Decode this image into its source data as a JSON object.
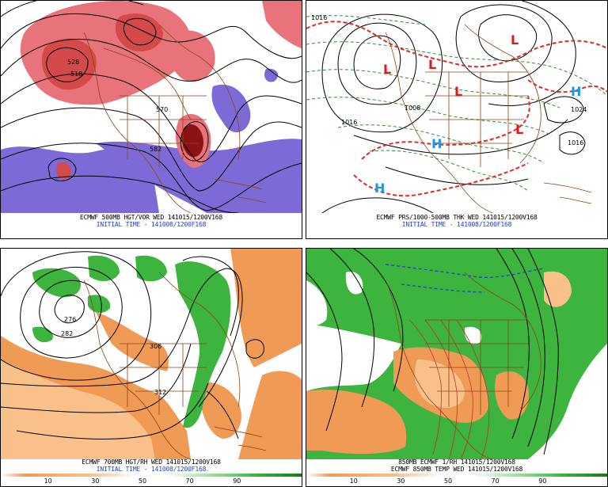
{
  "panels": [
    {
      "id": "vort500",
      "caption_line1": "ECMWF 500MB HGT/VOR WED 141015/1200V168",
      "caption_line2": "INITIAL TIME - 141008/1200F168",
      "contour_labels": [
        "570",
        "582",
        "528",
        "518"
      ]
    },
    {
      "id": "mslp",
      "caption_line1": "ECMWF PRS/1000-500MB THK WED 141015/1200V168",
      "caption_line2": "INITIAL TIME - 141008/1200F168",
      "contour_labels": [
        "1016",
        "1024",
        "1016",
        "1008",
        "1016"
      ],
      "pressure_centers": [
        {
          "label": "L",
          "kind": "low"
        },
        {
          "label": "L",
          "kind": "low"
        },
        {
          "label": "L",
          "kind": "low"
        },
        {
          "label": "L",
          "kind": "low"
        },
        {
          "label": "L",
          "kind": "low"
        },
        {
          "label": "H",
          "kind": "high"
        },
        {
          "label": "H",
          "kind": "high"
        },
        {
          "label": "H",
          "kind": "high"
        }
      ]
    },
    {
      "id": "rh700",
      "caption_line1": "ECMWF 700MB HGT/RH WED 141015/1200V168",
      "caption_line2": "INITIAL TIME - 141008/1200F168",
      "contour_labels": [
        "276",
        "282",
        "306",
        "312"
      ],
      "scale_labels": [
        "10",
        "30",
        "50",
        "70",
        "90"
      ]
    },
    {
      "id": "t850",
      "caption_line1": "850MB ECMWF 1/RH 141015/1200V168",
      "caption_line2": "ECMWF 850MB TEMP WED 141015/1200V168",
      "scale_labels": [
        "10",
        "30",
        "50",
        "70",
        "90"
      ]
    }
  ],
  "colors": {
    "vorticity_high": "#d44a4a",
    "vorticity_mid": "#e8737a",
    "vorticity_extreme": "#8a1414",
    "vorticity_negative": "#7d6ad6",
    "low_center": "#e01818",
    "high_center": "#1e96e6",
    "thickness_red": "#e02a2a",
    "thickness_green": "#2e8e2e",
    "rh_moist": "#3db43d",
    "rh_dry": "#f09b55",
    "coastline": "#8b4513"
  }
}
